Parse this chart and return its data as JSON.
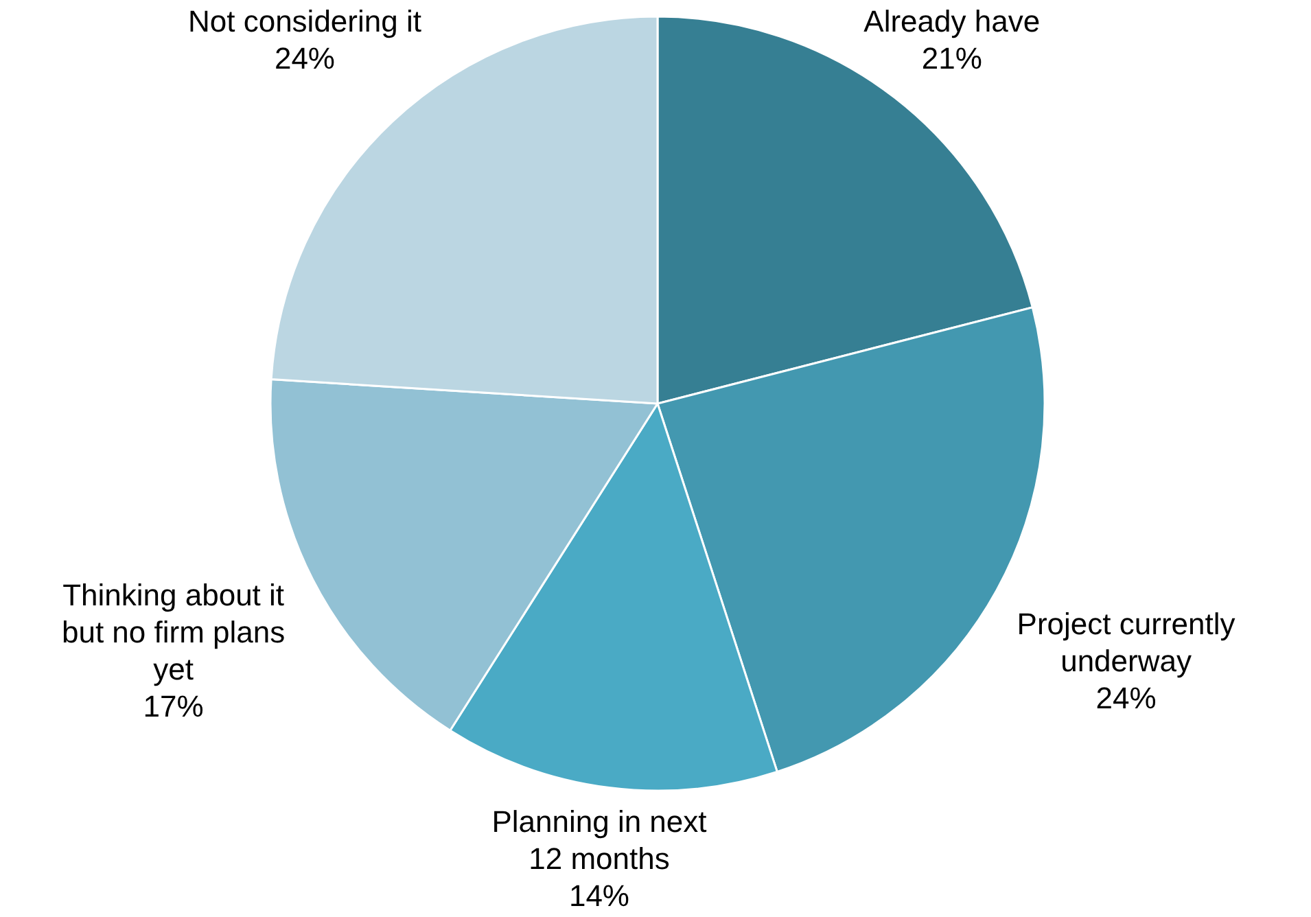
{
  "chart_data": {
    "type": "pie",
    "categories": [
      "Already have",
      "Project currently underway",
      "Planning in next 12 months",
      "Thinking about it but no firm plans yet",
      "Not considering it"
    ],
    "values": [
      21,
      24,
      14,
      17,
      24
    ],
    "colors": [
      "#367f93",
      "#4398b0",
      "#4aaac5",
      "#92c1d4",
      "#bbd6e2"
    ],
    "value_labels": [
      "21%",
      "24%",
      "14%",
      "17%",
      "24%"
    ]
  }
}
